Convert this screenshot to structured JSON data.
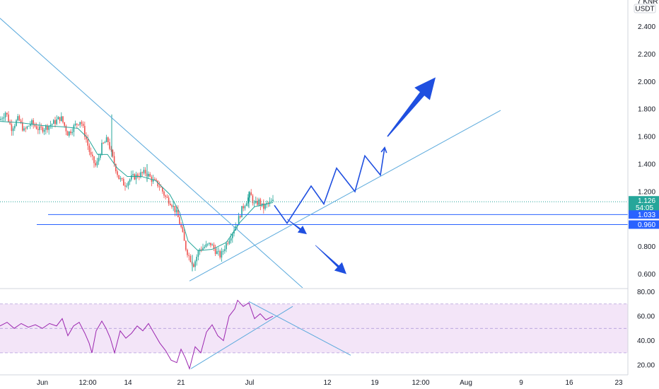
{
  "header": {
    "currency_cut": "7 KNR",
    "currency": "USDT"
  },
  "colors": {
    "up": "#26a69a",
    "down": "#ef5350",
    "ma": "#26a69a",
    "trend": "#5aa9dc",
    "levels": "#2962ff",
    "projection": "#1f4fe0",
    "rsi": "#9c27b0",
    "rsi_band": "#f3e5f8",
    "price_badge": "#26a69a",
    "level_badge": "#2962ff"
  },
  "chart_data": [
    {
      "type": "line",
      "name": "price",
      "ylim": [
        0.5,
        2.5
      ],
      "yticks": [
        "2.400",
        "2.200",
        "2.000",
        "1.800",
        "1.600",
        "1.400",
        "1.200",
        "0.800",
        "0.600"
      ],
      "ytick_values": [
        2.4,
        2.2,
        2.0,
        1.8,
        1.6,
        1.4,
        1.2,
        0.8,
        0.6
      ],
      "xlabels": [
        "Jun",
        "12:00",
        "14",
        "21",
        "Jul",
        "12",
        "19",
        "12:00",
        "Aug",
        "9",
        "16",
        "23"
      ],
      "price_path": [
        [
          0,
          1.72
        ],
        [
          8,
          1.78
        ],
        [
          16,
          1.66
        ],
        [
          26,
          1.73
        ],
        [
          34,
          1.64
        ],
        [
          44,
          1.7
        ],
        [
          56,
          1.65
        ],
        [
          66,
          1.67
        ],
        [
          76,
          1.7
        ],
        [
          86,
          1.74
        ],
        [
          96,
          1.62
        ],
        [
          106,
          1.68
        ],
        [
          114,
          1.72
        ],
        [
          122,
          1.58
        ],
        [
          128,
          1.46
        ],
        [
          136,
          1.38
        ],
        [
          144,
          1.53
        ],
        [
          152,
          1.58
        ],
        [
          160,
          1.43
        ],
        [
          168,
          1.3
        ],
        [
          176,
          1.25
        ],
        [
          186,
          1.3
        ],
        [
          196,
          1.32
        ],
        [
          206,
          1.34
        ],
        [
          216,
          1.28
        ],
        [
          226,
          1.24
        ],
        [
          234,
          1.16
        ],
        [
          242,
          1.12
        ],
        [
          250,
          1.04
        ],
        [
          256,
          0.94
        ],
        [
          262,
          0.8
        ],
        [
          268,
          0.72
        ],
        [
          274,
          0.67
        ],
        [
          282,
          0.78
        ],
        [
          290,
          0.8
        ],
        [
          298,
          0.82
        ],
        [
          306,
          0.76
        ],
        [
          312,
          0.73
        ],
        [
          318,
          0.8
        ],
        [
          324,
          0.86
        ],
        [
          330,
          0.92
        ],
        [
          336,
          0.98
        ],
        [
          342,
          1.07
        ],
        [
          348,
          1.13
        ],
        [
          354,
          1.18
        ],
        [
          360,
          1.1
        ],
        [
          366,
          1.13
        ],
        [
          372,
          1.08
        ],
        [
          378,
          1.11
        ],
        [
          386,
          1.126
        ]
      ],
      "ma_path": [
        [
          0,
          1.71
        ],
        [
          30,
          1.7
        ],
        [
          60,
          1.68
        ],
        [
          90,
          1.67
        ],
        [
          110,
          1.66
        ],
        [
          124,
          1.59
        ],
        [
          138,
          1.47
        ],
        [
          152,
          1.47
        ],
        [
          166,
          1.37
        ],
        [
          180,
          1.31
        ],
        [
          200,
          1.31
        ],
        [
          220,
          1.28
        ],
        [
          240,
          1.18
        ],
        [
          254,
          1.05
        ],
        [
          266,
          0.84
        ],
        [
          280,
          0.77
        ],
        [
          300,
          0.78
        ],
        [
          320,
          0.83
        ],
        [
          340,
          0.98
        ],
        [
          360,
          1.09
        ],
        [
          386,
          1.12
        ]
      ],
      "spikes": [
        [
          158,
          1.45,
          1.76
        ],
        [
          208,
          1.27,
          1.4
        ],
        [
          272,
          0.62,
          0.74
        ],
        [
          352,
          1.08,
          1.2
        ]
      ],
      "last_price": "1.126",
      "countdown": "54:05",
      "levels": [
        {
          "label": "1.033",
          "value": 1.033,
          "from_x": 68
        },
        {
          "label": "0.960",
          "value": 0.96,
          "from_x": 52
        }
      ],
      "trendlines": [
        {
          "name": "downtrend-line",
          "from": [
            0,
            2.46
          ],
          "to": [
            428,
            0.5
          ]
        },
        {
          "name": "uptrend-line",
          "from": [
            268,
            0.55
          ],
          "to": [
            708,
            1.79
          ]
        }
      ],
      "projection_up": [
        [
          388,
          1.1
        ],
        [
          406,
          0.97
        ],
        [
          440,
          1.24
        ],
        [
          458,
          1.11
        ],
        [
          476,
          1.37
        ],
        [
          502,
          1.2
        ],
        [
          516,
          1.46
        ],
        [
          538,
          1.32
        ],
        [
          544,
          1.52
        ]
      ],
      "projection_down": [
        [
          406,
          1.0
        ],
        [
          434,
          0.89
        ],
        [
          446,
          0.81
        ],
        [
          490,
          0.6
        ]
      ],
      "big_arrow": {
        "from": [
          548,
          1.6
        ],
        "to": [
          616,
          2.03
        ]
      }
    },
    {
      "type": "line",
      "name": "rsi",
      "ylim": [
        12,
        82
      ],
      "yticks": [
        "80.00",
        "60.00",
        "40.00",
        "20.00"
      ],
      "ytick_values": [
        80,
        60,
        40,
        20
      ],
      "band": [
        30,
        70
      ],
      "midline": 50,
      "rsi_path": [
        [
          0,
          52
        ],
        [
          10,
          55
        ],
        [
          20,
          50
        ],
        [
          30,
          54
        ],
        [
          40,
          51
        ],
        [
          50,
          53
        ],
        [
          60,
          50
        ],
        [
          70,
          54
        ],
        [
          80,
          52
        ],
        [
          88,
          58
        ],
        [
          96,
          44
        ],
        [
          104,
          52
        ],
        [
          112,
          55
        ],
        [
          120,
          46
        ],
        [
          126,
          38
        ],
        [
          130,
          30
        ],
        [
          136,
          48
        ],
        [
          144,
          56
        ],
        [
          150,
          50
        ],
        [
          156,
          42
        ],
        [
          162,
          30
        ],
        [
          170,
          48
        ],
        [
          178,
          42
        ],
        [
          186,
          46
        ],
        [
          194,
          52
        ],
        [
          202,
          48
        ],
        [
          210,
          54
        ],
        [
          218,
          46
        ],
        [
          226,
          38
        ],
        [
          234,
          32
        ],
        [
          242,
          24
        ],
        [
          250,
          22
        ],
        [
          256,
          33
        ],
        [
          262,
          26
        ],
        [
          268,
          17
        ],
        [
          276,
          35
        ],
        [
          284,
          30
        ],
        [
          292,
          47
        ],
        [
          300,
          53
        ],
        [
          308,
          44
        ],
        [
          316,
          40
        ],
        [
          324,
          60
        ],
        [
          332,
          66
        ],
        [
          336,
          73
        ],
        [
          344,
          68
        ],
        [
          352,
          71
        ],
        [
          360,
          58
        ],
        [
          368,
          62
        ],
        [
          376,
          57
        ],
        [
          386,
          60
        ]
      ],
      "trendlines": [
        {
          "name": "rsi-uptrend-line",
          "from": [
            270,
            17
          ],
          "to": [
            414,
            68
          ]
        },
        {
          "name": "rsi-downtrend-line",
          "from": [
            352,
            72
          ],
          "to": [
            496,
            28
          ]
        }
      ]
    }
  ]
}
